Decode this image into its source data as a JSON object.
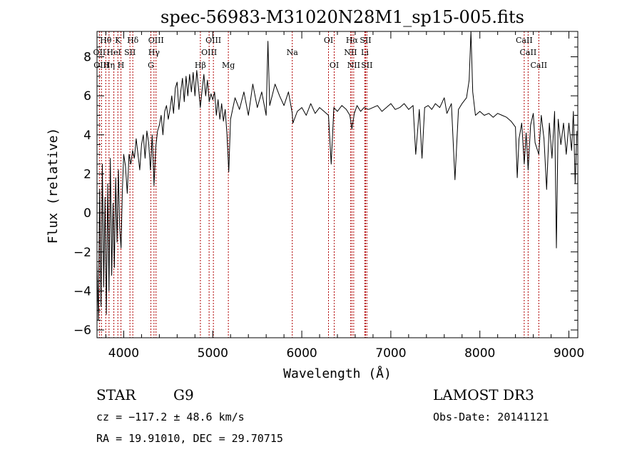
{
  "chart_data": {
    "type": "line",
    "title": "spec-56983-M31020N28M1_sp15-005.fits",
    "xlabel": "Wavelength (Å)",
    "ylabel": "Flux (relative)",
    "xlim": [
      3700,
      9100
    ],
    "ylim": [
      -6.4,
      9.3
    ],
    "xticks": [
      4000,
      5000,
      6000,
      7000,
      8000,
      9000
    ],
    "yticks": [
      -6,
      -4,
      -2,
      0,
      2,
      4,
      6,
      8
    ],
    "grid": false,
    "series": [
      {
        "points": [
          [
            3700,
            -2.5
          ],
          [
            3715,
            -5.5
          ],
          [
            3730,
            1.2
          ],
          [
            3745,
            -4.8
          ],
          [
            3760,
            2.5
          ],
          [
            3775,
            -3.8
          ],
          [
            3790,
            0.8
          ],
          [
            3805,
            -5.2
          ],
          [
            3820,
            1.5
          ],
          [
            3835,
            -4.0
          ],
          [
            3850,
            2.8
          ],
          [
            3865,
            -3.2
          ],
          [
            3880,
            0.5
          ],
          [
            3895,
            -2.8
          ],
          [
            3910,
            1.8
          ],
          [
            3925,
            -1.5
          ],
          [
            3940,
            2.2
          ],
          [
            3955,
            -0.8
          ],
          [
            3970,
            -1.8
          ],
          [
            3985,
            1.2
          ],
          [
            4000,
            3.0
          ],
          [
            4020,
            2.4
          ],
          [
            4040,
            1.0
          ],
          [
            4060,
            3.0
          ],
          [
            4080,
            2.5
          ],
          [
            4100,
            3.2
          ],
          [
            4120,
            2.8
          ],
          [
            4140,
            3.8
          ],
          [
            4160,
            3.0
          ],
          [
            4180,
            2.2
          ],
          [
            4200,
            3.5
          ],
          [
            4220,
            4.0
          ],
          [
            4240,
            2.8
          ],
          [
            4260,
            4.2
          ],
          [
            4280,
            3.6
          ],
          [
            4300,
            2.2
          ],
          [
            4320,
            4.0
          ],
          [
            4340,
            1.4
          ],
          [
            4360,
            3.4
          ],
          [
            4380,
            4.2
          ],
          [
            4400,
            4.5
          ],
          [
            4420,
            5.0
          ],
          [
            4440,
            4.0
          ],
          [
            4460,
            5.2
          ],
          [
            4480,
            5.5
          ],
          [
            4500,
            4.8
          ],
          [
            4520,
            5.3
          ],
          [
            4540,
            6.0
          ],
          [
            4560,
            5.1
          ],
          [
            4580,
            6.4
          ],
          [
            4600,
            6.7
          ],
          [
            4620,
            5.3
          ],
          [
            4640,
            6.2
          ],
          [
            4660,
            6.9
          ],
          [
            4680,
            5.7
          ],
          [
            4700,
            7.0
          ],
          [
            4720,
            6.0
          ],
          [
            4740,
            7.1
          ],
          [
            4760,
            6.2
          ],
          [
            4780,
            7.2
          ],
          [
            4800,
            6.0
          ],
          [
            4820,
            7.3
          ],
          [
            4840,
            6.4
          ],
          [
            4860,
            5.4
          ],
          [
            4880,
            6.3
          ],
          [
            4900,
            7.1
          ],
          [
            4920,
            6.0
          ],
          [
            4940,
            6.8
          ],
          [
            4960,
            5.7
          ],
          [
            4980,
            6.1
          ],
          [
            5000,
            5.8
          ],
          [
            5020,
            6.2
          ],
          [
            5040,
            5.0
          ],
          [
            5060,
            5.8
          ],
          [
            5080,
            4.8
          ],
          [
            5100,
            5.6
          ],
          [
            5120,
            4.7
          ],
          [
            5140,
            5.3
          ],
          [
            5160,
            4.0
          ],
          [
            5180,
            2.1
          ],
          [
            5200,
            4.8
          ],
          [
            5250,
            5.9
          ],
          [
            5300,
            5.3
          ],
          [
            5350,
            6.2
          ],
          [
            5400,
            5.0
          ],
          [
            5450,
            6.6
          ],
          [
            5500,
            5.4
          ],
          [
            5550,
            6.2
          ],
          [
            5600,
            5.0
          ],
          [
            5620,
            8.8
          ],
          [
            5640,
            5.5
          ],
          [
            5700,
            6.6
          ],
          [
            5750,
            6.0
          ],
          [
            5800,
            5.5
          ],
          [
            5850,
            6.2
          ],
          [
            5893,
            5.1
          ],
          [
            5900,
            4.6
          ],
          [
            5950,
            5.2
          ],
          [
            6000,
            5.4
          ],
          [
            6050,
            5.0
          ],
          [
            6100,
            5.6
          ],
          [
            6150,
            5.1
          ],
          [
            6200,
            5.4
          ],
          [
            6250,
            5.2
          ],
          [
            6300,
            5.0
          ],
          [
            6330,
            2.5
          ],
          [
            6360,
            5.4
          ],
          [
            6400,
            5.2
          ],
          [
            6450,
            5.5
          ],
          [
            6500,
            5.3
          ],
          [
            6540,
            5.0
          ],
          [
            6563,
            4.3
          ],
          [
            6590,
            5.1
          ],
          [
            6620,
            5.5
          ],
          [
            6660,
            5.2
          ],
          [
            6700,
            5.4
          ],
          [
            6750,
            5.3
          ],
          [
            6800,
            5.4
          ],
          [
            6850,
            5.5
          ],
          [
            6900,
            5.2
          ],
          [
            6950,
            5.4
          ],
          [
            7000,
            5.6
          ],
          [
            7050,
            5.3
          ],
          [
            7100,
            5.4
          ],
          [
            7150,
            5.6
          ],
          [
            7200,
            5.3
          ],
          [
            7250,
            5.5
          ],
          [
            7280,
            3.0
          ],
          [
            7320,
            5.3
          ],
          [
            7350,
            2.8
          ],
          [
            7380,
            5.4
          ],
          [
            7420,
            5.5
          ],
          [
            7460,
            5.3
          ],
          [
            7500,
            5.6
          ],
          [
            7550,
            5.4
          ],
          [
            7600,
            5.9
          ],
          [
            7630,
            5.1
          ],
          [
            7680,
            5.6
          ],
          [
            7720,
            1.7
          ],
          [
            7760,
            5.3
          ],
          [
            7800,
            5.6
          ],
          [
            7850,
            5.9
          ],
          [
            7880,
            6.8
          ],
          [
            7900,
            9.3
          ],
          [
            7920,
            6.2
          ],
          [
            7950,
            5.0
          ],
          [
            8000,
            5.2
          ],
          [
            8050,
            5.0
          ],
          [
            8100,
            5.1
          ],
          [
            8150,
            4.9
          ],
          [
            8200,
            5.1
          ],
          [
            8250,
            5.0
          ],
          [
            8300,
            4.9
          ],
          [
            8350,
            4.7
          ],
          [
            8400,
            4.4
          ],
          [
            8420,
            1.8
          ],
          [
            8440,
            3.8
          ],
          [
            8470,
            4.6
          ],
          [
            8498,
            2.5
          ],
          [
            8520,
            4.1
          ],
          [
            8542,
            2.2
          ],
          [
            8570,
            4.5
          ],
          [
            8600,
            5.1
          ],
          [
            8620,
            3.6
          ],
          [
            8662,
            3.0
          ],
          [
            8690,
            5.0
          ],
          [
            8720,
            3.8
          ],
          [
            8750,
            1.2
          ],
          [
            8780,
            4.6
          ],
          [
            8810,
            2.8
          ],
          [
            8840,
            5.2
          ],
          [
            8860,
            -1.8
          ],
          [
            8880,
            4.8
          ],
          [
            8910,
            3.5
          ],
          [
            8940,
            4.6
          ],
          [
            8970,
            3.0
          ],
          [
            9000,
            4.6
          ],
          [
            9030,
            3.2
          ],
          [
            9050,
            5.2
          ],
          [
            9070,
            1.5
          ],
          [
            9090,
            4.2
          ]
        ]
      }
    ],
    "line_markers": [
      {
        "label": "Hθ",
        "wavelength": 3798,
        "row": 1
      },
      {
        "label": "K",
        "wavelength": 3934,
        "row": 1
      },
      {
        "label": "Hδ",
        "wavelength": 4102,
        "row": 1
      },
      {
        "label": "OIII",
        "wavelength": 4363,
        "row": 1
      },
      {
        "label": "OIII",
        "wavelength": 5007,
        "row": 1
      },
      {
        "label": "OI",
        "wavelength": 6300,
        "row": 1
      },
      {
        "label": "Hα",
        "wavelength": 6563,
        "row": 1
      },
      {
        "label": "SII",
        "wavelength": 6716,
        "row": 1
      },
      {
        "label": "CaII",
        "wavelength": 8498,
        "row": 1
      },
      {
        "label": "OII",
        "wavelength": 3727,
        "row": 2
      },
      {
        "label": "HeI",
        "wavelength": 3889,
        "row": 2
      },
      {
        "label": "SII",
        "wavelength": 4070,
        "row": 2
      },
      {
        "label": "Hγ",
        "wavelength": 4340,
        "row": 2
      },
      {
        "label": "OIII",
        "wavelength": 4959,
        "row": 2
      },
      {
        "label": "Na",
        "wavelength": 5893,
        "row": 2
      },
      {
        "label": "NII",
        "wavelength": 6548,
        "row": 2
      },
      {
        "label": "Li",
        "wavelength": 6708,
        "row": 2
      },
      {
        "label": "CaII",
        "wavelength": 8542,
        "row": 2
      },
      {
        "label": "OIII",
        "wavelength": 3750,
        "row": 3
      },
      {
        "label": "Hη",
        "wavelength": 3835,
        "row": 3
      },
      {
        "label": "H",
        "wavelength": 3969,
        "row": 3
      },
      {
        "label": "G",
        "wavelength": 4305,
        "row": 3
      },
      {
        "label": "Hβ",
        "wavelength": 4861,
        "row": 3
      },
      {
        "label": "Mg",
        "wavelength": 5175,
        "row": 3
      },
      {
        "label": "OI",
        "wavelength": 6364,
        "row": 3
      },
      {
        "label": "NII",
        "wavelength": 6583,
        "row": 3
      },
      {
        "label": "SII",
        "wavelength": 6731,
        "row": 3
      },
      {
        "label": "CaII",
        "wavelength": 8662,
        "row": 3
      }
    ]
  },
  "info": {
    "object_class": "STAR",
    "subclass": "G9",
    "survey": "LAMOST DR3",
    "cz": "cz = −117.2 ± 48.6 km/s",
    "obs_date": "Obs-Date: 20141121",
    "coords": "RA =  19.91010, DEC =  29.70715"
  },
  "colors": {
    "spectrum": "#000000",
    "marker_lines": "#b00000",
    "axes": "#000000"
  }
}
